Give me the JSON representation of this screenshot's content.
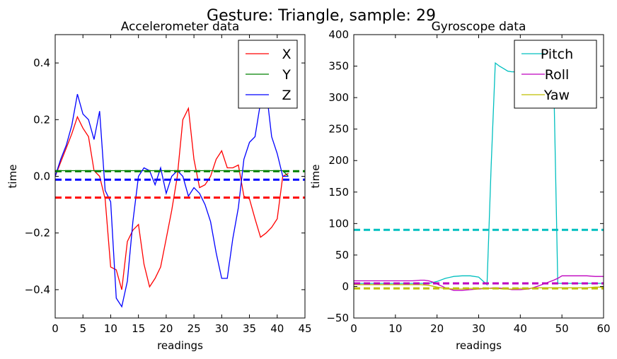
{
  "suptitle": "Gesture: Triangle, sample: 29",
  "chart_data": [
    {
      "type": "line",
      "title": "Accelerometer data",
      "xlabel": "readings",
      "ylabel": "time",
      "xlim": [
        0,
        45
      ],
      "ylim": [
        -0.5,
        0.5
      ],
      "xticks": [
        0,
        5,
        10,
        15,
        20,
        25,
        30,
        35,
        40,
        45
      ],
      "yticks": [
        -0.4,
        -0.2,
        0.0,
        0.2,
        0.4
      ],
      "ytick_labels": [
        "−0.4",
        "−0.2",
        "0.0",
        "0.2",
        "0.4"
      ],
      "grid": false,
      "legend": "top-right",
      "series": [
        {
          "name": "X",
          "color": "#ff0000",
          "x": [
            0,
            1,
            2,
            3,
            4,
            5,
            6,
            7,
            8,
            9,
            10,
            11,
            12,
            13,
            14,
            15,
            16,
            17,
            18,
            19,
            20,
            21,
            22,
            23,
            24,
            25,
            26,
            27,
            28,
            29,
            30,
            31,
            32,
            33,
            34,
            35,
            36,
            37,
            38,
            39,
            40,
            41,
            42
          ],
          "values": [
            0.0,
            0.05,
            0.1,
            0.15,
            0.21,
            0.17,
            0.14,
            0.02,
            0.0,
            -0.08,
            -0.32,
            -0.33,
            -0.4,
            -0.23,
            -0.19,
            -0.17,
            -0.31,
            -0.39,
            -0.36,
            -0.32,
            -0.22,
            -0.12,
            0.0,
            0.2,
            0.24,
            0.06,
            -0.04,
            -0.03,
            0.0,
            0.06,
            0.09,
            0.03,
            0.03,
            0.04,
            -0.07,
            -0.08,
            -0.15,
            -0.215,
            -0.2,
            -0.18,
            -0.15,
            0.0,
            0.01
          ],
          "mean": -0.075
        },
        {
          "name": "Y",
          "color": "#008000",
          "x": [
            0,
            1,
            2,
            3,
            4,
            5,
            6,
            7,
            8,
            9,
            10,
            11,
            12,
            13,
            14,
            15,
            16,
            17,
            18,
            19,
            20,
            21,
            22,
            23,
            24,
            25,
            26,
            27,
            28,
            29,
            30,
            31,
            32,
            33,
            34,
            35,
            36,
            37,
            38,
            39,
            40,
            41,
            42
          ],
          "values": [
            0.02,
            0.02,
            0.02,
            0.02,
            0.02,
            0.02,
            0.02,
            0.02,
            0.02,
            0.02,
            0.02,
            0.02,
            0.02,
            0.02,
            0.02,
            0.02,
            0.02,
            0.02,
            0.02,
            0.02,
            0.02,
            0.02,
            0.02,
            0.02,
            0.02,
            0.02,
            0.02,
            0.02,
            0.02,
            0.02,
            0.02,
            0.02,
            0.02,
            0.02,
            0.02,
            0.02,
            0.02,
            0.02,
            0.02,
            0.02,
            0.02,
            0.02,
            0.0
          ],
          "mean": 0.018
        },
        {
          "name": "Z",
          "color": "#0000ff",
          "x": [
            0,
            1,
            2,
            3,
            4,
            5,
            6,
            7,
            8,
            9,
            10,
            11,
            12,
            13,
            14,
            15,
            16,
            17,
            18,
            19,
            20,
            21,
            22,
            23,
            24,
            25,
            26,
            27,
            28,
            29,
            30,
            31,
            32,
            33,
            34,
            35,
            36,
            37,
            38,
            39,
            40,
            41,
            42
          ],
          "values": [
            0.0,
            0.06,
            0.11,
            0.18,
            0.29,
            0.22,
            0.2,
            0.13,
            0.23,
            -0.05,
            -0.09,
            -0.43,
            -0.46,
            -0.37,
            -0.16,
            0.0,
            0.03,
            0.02,
            -0.03,
            0.03,
            -0.06,
            0.0,
            0.02,
            0.0,
            -0.07,
            -0.04,
            -0.06,
            -0.1,
            -0.16,
            -0.27,
            -0.36,
            -0.36,
            -0.22,
            -0.11,
            0.06,
            0.12,
            0.14,
            0.26,
            0.31,
            0.14,
            0.08,
            0.0,
            0.0
          ],
          "mean": -0.012
        }
      ]
    },
    {
      "type": "line",
      "title": "Gyroscope data",
      "xlabel": "readings",
      "ylabel": "time",
      "xlim": [
        0,
        60
      ],
      "ylim": [
        -50,
        400
      ],
      "xticks": [
        0,
        10,
        20,
        30,
        40,
        50,
        60
      ],
      "yticks": [
        -50,
        0,
        50,
        100,
        150,
        200,
        250,
        300,
        350,
        400
      ],
      "ytick_labels": [
        "−50",
        "0",
        "50",
        "100",
        "150",
        "200",
        "250",
        "300",
        "350",
        "400"
      ],
      "grid": false,
      "legend": "top-right",
      "series": [
        {
          "name": "Pitch",
          "color": "#00bfbf",
          "x": [
            0,
            2,
            4,
            6,
            8,
            10,
            12,
            14,
            16,
            18,
            20,
            22,
            24,
            26,
            28,
            30,
            32,
            33,
            34,
            35,
            36,
            37,
            38,
            39,
            40,
            41,
            42,
            43,
            44,
            45,
            46,
            47,
            48,
            49,
            50,
            52,
            54,
            56,
            58,
            60
          ],
          "values": [
            5,
            5,
            5,
            5,
            5,
            5,
            5,
            5,
            5,
            5,
            8,
            13,
            16,
            17,
            17,
            15,
            3,
            190,
            355,
            350,
            346,
            342,
            341,
            341,
            340,
            340,
            340,
            340,
            340,
            340,
            340,
            340,
            340,
            5,
            5,
            5,
            5,
            5,
            5,
            5
          ],
          "mean": 90
        },
        {
          "name": "Roll",
          "color": "#bf00bf",
          "x": [
            0,
            2,
            4,
            6,
            8,
            10,
            12,
            14,
            16,
            17,
            18,
            19,
            20,
            22,
            24,
            26,
            28,
            30,
            32,
            34,
            36,
            38,
            40,
            42,
            44,
            46,
            48,
            49,
            50,
            52,
            54,
            56,
            58,
            60
          ],
          "values": [
            9,
            9,
            9,
            9,
            9,
            9,
            9,
            9,
            10,
            10,
            9,
            7,
            4,
            -2,
            -6,
            -6,
            -5,
            -4,
            -3,
            -2,
            -3,
            -5,
            -5,
            -4,
            0,
            5,
            10,
            13,
            17,
            17,
            17,
            17,
            16,
            16
          ],
          "mean": 5
        },
        {
          "name": "Yaw",
          "color": "#bfbf00",
          "x": [
            0,
            4,
            8,
            12,
            16,
            18,
            20,
            22,
            24,
            26,
            28,
            30,
            32,
            34,
            36,
            38,
            40,
            42,
            44,
            46,
            48,
            50,
            52,
            54,
            56,
            58,
            60
          ],
          "values": [
            3,
            3,
            3,
            3,
            3,
            2,
            -1,
            -3,
            -4,
            -4,
            -3,
            -3,
            -3,
            -3,
            -4,
            -4,
            -3,
            -3,
            -2,
            -2,
            -2,
            -2,
            -2,
            -2,
            -2,
            -1,
            -1
          ],
          "mean": -3
        }
      ]
    }
  ]
}
